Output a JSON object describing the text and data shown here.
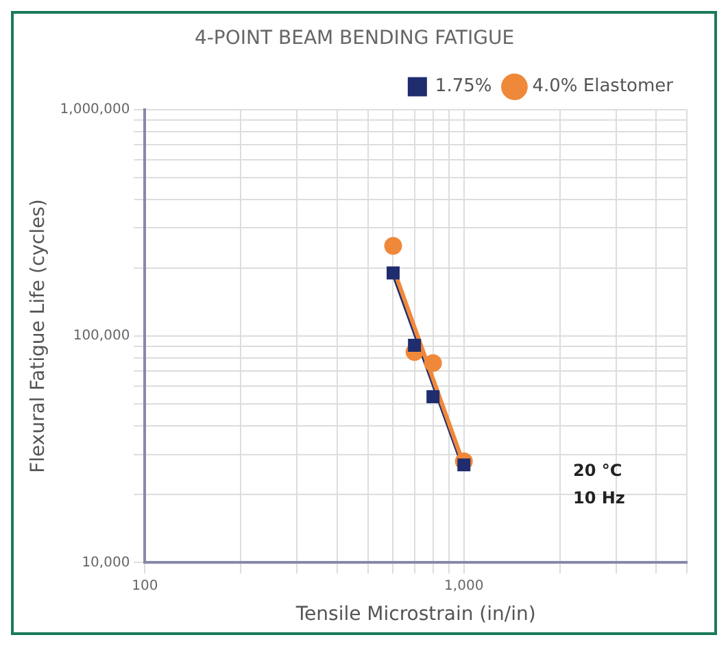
{
  "chart_data": {
    "type": "scatter",
    "title": "4-POINT BEAM BENDING FATIGUE",
    "xlabel": "Tensile Microstrain (in/in)",
    "ylabel": "Flexural Fatigue Life (cycles)",
    "log": "xy",
    "xlim": [
      100,
      5000
    ],
    "ylim": [
      10000,
      1000000
    ],
    "xticks": [
      {
        "value": 100,
        "label": "100"
      },
      {
        "value": 200,
        "label": null
      },
      {
        "value": 300,
        "label": null
      },
      {
        "value": 400,
        "label": null
      },
      {
        "value": 500,
        "label": null
      },
      {
        "value": 600,
        "label": null
      },
      {
        "value": 700,
        "label": null
      },
      {
        "value": 800,
        "label": null
      },
      {
        "value": 900,
        "label": null
      },
      {
        "value": 1000,
        "label": "1,000"
      },
      {
        "value": 2000,
        "label": null
      },
      {
        "value": 3000,
        "label": null
      },
      {
        "value": 4000,
        "label": null
      },
      {
        "value": 5000,
        "label": null
      }
    ],
    "yticks": [
      {
        "value": 10000,
        "label": "10,000"
      },
      {
        "value": 20000,
        "label": null
      },
      {
        "value": 30000,
        "label": null
      },
      {
        "value": 40000,
        "label": null
      },
      {
        "value": 50000,
        "label": null
      },
      {
        "value": 60000,
        "label": null
      },
      {
        "value": 70000,
        "label": null
      },
      {
        "value": 80000,
        "label": null
      },
      {
        "value": 90000,
        "label": null
      },
      {
        "value": 100000,
        "label": "100,000"
      },
      {
        "value": 200000,
        "label": null
      },
      {
        "value": 300000,
        "label": null
      },
      {
        "value": 400000,
        "label": null
      },
      {
        "value": 500000,
        "label": null
      },
      {
        "value": 600000,
        "label": null
      },
      {
        "value": 700000,
        "label": null
      },
      {
        "value": 800000,
        "label": null
      },
      {
        "value": 900000,
        "label": null
      },
      {
        "value": 1000000,
        "label": "1,000,000"
      }
    ],
    "grid": true,
    "legend": "top right",
    "annotations": [
      "20 °C",
      "10 Hz"
    ],
    "series": [
      {
        "name": "1.75%",
        "color": "#1f2d6e",
        "marker": "square",
        "x": [
          600,
          700,
          800,
          1000
        ],
        "values": [
          190000,
          91000,
          54000,
          27000
        ]
      },
      {
        "name": "4.0% Elastomer",
        "color": "#f0883a",
        "marker": "circle",
        "x": [
          600,
          700,
          800,
          1000
        ],
        "values": [
          250000,
          85000,
          76000,
          28000
        ]
      },
      {
        "type": "line",
        "color": "#f0883a",
        "marker": "none",
        "x": [
          600,
          1000
        ],
        "values": [
          200000,
          27000
        ]
      },
      {
        "type": "line",
        "color": "#1f2d6e",
        "marker": "none",
        "x": [
          600,
          1000
        ],
        "values": [
          190000,
          26000
        ]
      }
    ]
  }
}
